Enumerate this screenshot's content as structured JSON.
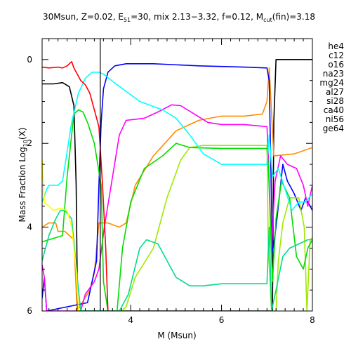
{
  "chart_data": {
    "type": "line",
    "title_parts": {
      "prefix": "30Msun, Z=0.02, E",
      "sub1": "51",
      "mid": "=30, mix 2.13−3.32, f=0.12, M",
      "sub2": "cut",
      "suffix": "(fin)=3.18"
    },
    "xlabel": "M (Msun)",
    "ylabel_parts": {
      "main": "Mass Fraction Log",
      "sub": "10",
      "tail": "(X)"
    },
    "xlim": [
      2.05,
      8.0
    ],
    "ylim": [
      -6.0,
      0.5
    ],
    "xticks": [
      4,
      6,
      8
    ],
    "yticks": [
      0,
      -2,
      -4,
      -6
    ],
    "vline": {
      "x": 3.33,
      "color": "#000000"
    },
    "legend_position": "right-outside",
    "series": [
      {
        "name": "he4",
        "color": "#000000",
        "points": [
          [
            2.05,
            -0.58
          ],
          [
            2.3,
            -0.58
          ],
          [
            2.5,
            -0.55
          ],
          [
            2.65,
            -0.65
          ],
          [
            2.75,
            -1.1
          ],
          [
            2.8,
            -3.0
          ],
          [
            2.83,
            -6.0
          ],
          [
            7.12,
            -6.0
          ],
          [
            7.15,
            -1.5
          ],
          [
            7.2,
            0.0
          ],
          [
            8.0,
            0.0
          ]
        ]
      },
      {
        "name": "c12",
        "color": "#ff8c00",
        "points": [
          [
            2.05,
            -4.0
          ],
          [
            2.2,
            -3.9
          ],
          [
            2.35,
            -3.9
          ],
          [
            2.4,
            -4.1
          ],
          [
            2.55,
            -4.1
          ],
          [
            2.75,
            -4.3
          ],
          [
            2.82,
            -6.0
          ],
          [
            3.1,
            -5.5
          ],
          [
            3.2,
            -5.1
          ],
          [
            3.25,
            -4.5
          ],
          [
            3.3,
            -3.9
          ],
          [
            3.5,
            -3.9
          ],
          [
            3.75,
            -4.0
          ],
          [
            3.9,
            -3.9
          ],
          [
            4.1,
            -3.0
          ],
          [
            4.5,
            -2.3
          ],
          [
            5.0,
            -1.7
          ],
          [
            5.5,
            -1.45
          ],
          [
            6.0,
            -1.35
          ],
          [
            6.5,
            -1.35
          ],
          [
            6.9,
            -1.3
          ],
          [
            7.0,
            -1.0
          ],
          [
            7.05,
            -0.2
          ],
          [
            7.15,
            -2.3
          ],
          [
            7.6,
            -2.25
          ],
          [
            8.0,
            -2.1
          ]
        ]
      },
      {
        "name": "o16",
        "color": "#0000ff",
        "points": [
          [
            2.05,
            -5.7
          ],
          [
            2.1,
            -5.2
          ],
          [
            2.15,
            -6.0
          ],
          [
            3.05,
            -5.8
          ],
          [
            3.15,
            -5.3
          ],
          [
            3.25,
            -4.8
          ],
          [
            3.3,
            -3.0
          ],
          [
            3.35,
            -1.5
          ],
          [
            3.4,
            -0.7
          ],
          [
            3.5,
            -0.3
          ],
          [
            3.65,
            -0.15
          ],
          [
            3.9,
            -0.1
          ],
          [
            4.5,
            -0.1
          ],
          [
            5.5,
            -0.15
          ],
          [
            6.5,
            -0.18
          ],
          [
            7.0,
            -0.2
          ],
          [
            7.05,
            -0.5
          ],
          [
            7.12,
            -4.6
          ],
          [
            7.2,
            -4.0
          ],
          [
            7.35,
            -2.5
          ],
          [
            7.45,
            -2.9
          ],
          [
            7.6,
            -3.2
          ],
          [
            7.75,
            -3.6
          ],
          [
            7.85,
            -3.3
          ],
          [
            8.0,
            -3.6
          ]
        ]
      },
      {
        "name": "na23",
        "color": "#a0e800",
        "points": [
          [
            3.8,
            -6.0
          ],
          [
            3.9,
            -5.9
          ],
          [
            4.1,
            -5.2
          ],
          [
            4.5,
            -4.5
          ],
          [
            4.8,
            -3.3
          ],
          [
            5.1,
            -2.4
          ],
          [
            5.3,
            -2.1
          ],
          [
            5.6,
            -2.05
          ],
          [
            6.0,
            -2.05
          ],
          [
            7.0,
            -2.05
          ],
          [
            7.03,
            -4.5
          ],
          [
            7.1,
            -6.0
          ],
          [
            7.2,
            -6.0
          ],
          [
            7.25,
            -4.8
          ],
          [
            7.35,
            -3.9
          ],
          [
            7.5,
            -3.3
          ],
          [
            7.7,
            -3.3
          ],
          [
            7.82,
            -4.0
          ],
          [
            7.88,
            -6.0
          ],
          [
            7.95,
            -4.3
          ],
          [
            8.0,
            -4.25
          ]
        ]
      },
      {
        "name": "mg24",
        "color": "#ff00ff",
        "points": [
          [
            2.05,
            -4.9
          ],
          [
            2.1,
            -5.2
          ],
          [
            2.15,
            -6.0
          ],
          [
            2.9,
            -6.0
          ],
          [
            3.0,
            -5.6
          ],
          [
            3.2,
            -5.3
          ],
          [
            3.3,
            -5.0
          ],
          [
            3.42,
            -4.0
          ],
          [
            3.6,
            -2.8
          ],
          [
            3.75,
            -1.8
          ],
          [
            3.9,
            -1.45
          ],
          [
            4.3,
            -1.4
          ],
          [
            4.6,
            -1.25
          ],
          [
            4.9,
            -1.08
          ],
          [
            5.1,
            -1.1
          ],
          [
            5.4,
            -1.3
          ],
          [
            5.7,
            -1.5
          ],
          [
            6.0,
            -1.55
          ],
          [
            6.5,
            -1.55
          ],
          [
            7.0,
            -1.6
          ],
          [
            7.03,
            -2.3
          ],
          [
            7.1,
            -4.5
          ],
          [
            7.18,
            -2.9
          ],
          [
            7.3,
            -2.3
          ],
          [
            7.45,
            -2.5
          ],
          [
            7.65,
            -2.6
          ],
          [
            7.8,
            -3.0
          ],
          [
            7.9,
            -3.5
          ],
          [
            8.0,
            -3.0
          ]
        ]
      },
      {
        "name": "al27",
        "color": "#00dd00",
        "points": [
          [
            2.05,
            -4.35
          ],
          [
            2.5,
            -4.2
          ],
          [
            2.6,
            -2.8
          ],
          [
            2.75,
            -1.3
          ],
          [
            2.85,
            -1.2
          ],
          [
            2.95,
            -1.25
          ],
          [
            3.05,
            -1.5
          ],
          [
            3.2,
            -2.0
          ],
          [
            3.35,
            -3.0
          ],
          [
            3.4,
            -5.3
          ],
          [
            3.5,
            -6.0
          ],
          [
            3.7,
            -6.0
          ],
          [
            3.82,
            -4.5
          ],
          [
            4.0,
            -3.4
          ],
          [
            4.3,
            -2.6
          ],
          [
            4.7,
            -2.3
          ],
          [
            5.0,
            -2.0
          ],
          [
            5.3,
            -2.1
          ],
          [
            6.0,
            -2.12
          ],
          [
            7.0,
            -2.12
          ],
          [
            7.03,
            -2.5
          ],
          [
            7.12,
            -5.3
          ],
          [
            7.2,
            -3.8
          ],
          [
            7.32,
            -2.9
          ],
          [
            7.5,
            -3.3
          ],
          [
            7.65,
            -4.7
          ],
          [
            7.8,
            -5.0
          ],
          [
            7.9,
            -4.5
          ],
          [
            8.0,
            -4.3
          ]
        ]
      },
      {
        "name": "si28",
        "color": "#00ffff",
        "points": [
          [
            2.05,
            -3.4
          ],
          [
            2.15,
            -3.1
          ],
          [
            2.2,
            -3.0
          ],
          [
            2.4,
            -3.0
          ],
          [
            2.5,
            -2.9
          ],
          [
            2.6,
            -2.2
          ],
          [
            2.7,
            -1.5
          ],
          [
            2.85,
            -0.8
          ],
          [
            3.0,
            -0.45
          ],
          [
            3.15,
            -0.3
          ],
          [
            3.3,
            -0.3
          ],
          [
            3.4,
            -0.35
          ],
          [
            3.7,
            -0.6
          ],
          [
            4.2,
            -1.0
          ],
          [
            4.7,
            -1.2
          ],
          [
            5.0,
            -1.4
          ],
          [
            5.3,
            -1.8
          ],
          [
            5.6,
            -2.25
          ],
          [
            6.0,
            -2.5
          ],
          [
            6.5,
            -2.5
          ],
          [
            7.0,
            -2.5
          ],
          [
            7.05,
            -1.8
          ],
          [
            7.12,
            -2.8
          ],
          [
            7.25,
            -2.6
          ],
          [
            7.4,
            -3.1
          ],
          [
            7.55,
            -3.6
          ],
          [
            7.7,
            -3.4
          ],
          [
            7.85,
            -3.4
          ],
          [
            8.0,
            -3.2
          ]
        ]
      },
      {
        "name": "ca40",
        "color": "#00dd88",
        "points": [
          [
            2.05,
            -4.8
          ],
          [
            2.2,
            -4.2
          ],
          [
            2.35,
            -3.8
          ],
          [
            2.45,
            -3.6
          ],
          [
            2.55,
            -3.6
          ],
          [
            2.7,
            -3.8
          ],
          [
            2.85,
            -5.5
          ],
          [
            2.9,
            -6.0
          ],
          [
            3.75,
            -6.0
          ],
          [
            3.95,
            -5.6
          ],
          [
            4.2,
            -4.5
          ],
          [
            4.35,
            -4.3
          ],
          [
            4.6,
            -4.4
          ],
          [
            4.8,
            -4.8
          ],
          [
            5.0,
            -5.2
          ],
          [
            5.3,
            -5.4
          ],
          [
            5.6,
            -5.4
          ],
          [
            6.0,
            -5.35
          ],
          [
            6.5,
            -5.35
          ],
          [
            7.0,
            -5.35
          ],
          [
            7.05,
            -4.0
          ],
          [
            7.1,
            -6.0
          ],
          [
            7.2,
            -5.5
          ],
          [
            7.35,
            -4.7
          ],
          [
            7.5,
            -4.5
          ],
          [
            7.7,
            -4.4
          ],
          [
            7.9,
            -4.3
          ],
          [
            8.0,
            -4.3
          ]
        ]
      },
      {
        "name": "ni56",
        "color": "#ff0000",
        "points": [
          [
            2.05,
            -0.18
          ],
          [
            2.2,
            -0.2
          ],
          [
            2.4,
            -0.18
          ],
          [
            2.5,
            -0.2
          ],
          [
            2.6,
            -0.15
          ],
          [
            2.7,
            -0.05
          ],
          [
            2.75,
            -0.2
          ],
          [
            2.9,
            -0.5
          ],
          [
            3.0,
            -0.6
          ],
          [
            3.1,
            -0.8
          ],
          [
            3.2,
            -1.2
          ],
          [
            3.3,
            -1.6
          ],
          [
            3.38,
            -3.0
          ],
          [
            3.45,
            -4.5
          ],
          [
            3.5,
            -6.0
          ]
        ]
      },
      {
        "name": "ge64",
        "color": "#ffff00",
        "points": [
          [
            2.05,
            -2.4
          ],
          [
            2.08,
            -3.0
          ],
          [
            2.1,
            -3.4
          ],
          [
            2.2,
            -3.5
          ],
          [
            2.3,
            -3.6
          ],
          [
            2.45,
            -3.55
          ],
          [
            2.6,
            -3.6
          ],
          [
            2.7,
            -4.0
          ],
          [
            2.8,
            -5.0
          ],
          [
            2.85,
            -6.0
          ]
        ]
      }
    ]
  }
}
